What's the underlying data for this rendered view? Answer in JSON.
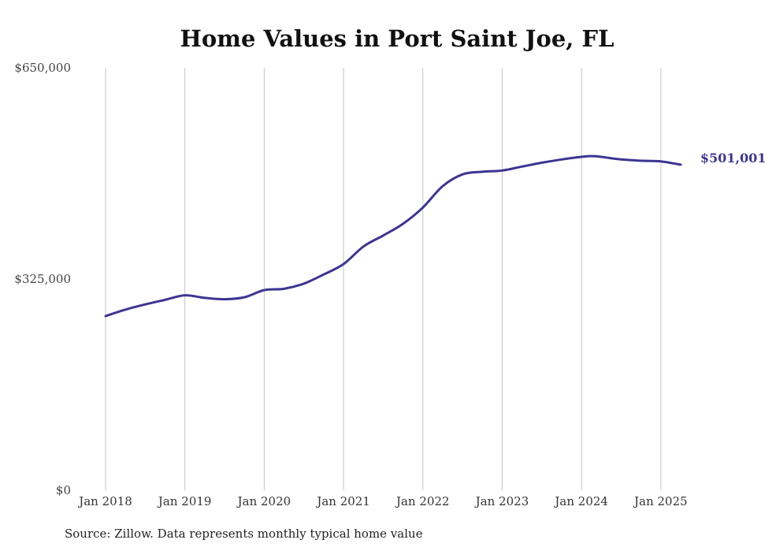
{
  "chart_data": {
    "type": "line",
    "title": "Home Values in Port Saint Joe, FL",
    "xlabel": "",
    "ylabel": "",
    "ylim": [
      0,
      650000
    ],
    "yticks": [
      {
        "value": 0,
        "label": "$0"
      },
      {
        "value": 325000,
        "label": "$325,000"
      },
      {
        "value": 650000,
        "label": "$650,000"
      }
    ],
    "xticks": [
      {
        "value": "2018-01",
        "label": "Jan 2018"
      },
      {
        "value": "2019-01",
        "label": "Jan 2019"
      },
      {
        "value": "2020-01",
        "label": "Jan 2020"
      },
      {
        "value": "2021-01",
        "label": "Jan 2021"
      },
      {
        "value": "2022-01",
        "label": "Jan 2022"
      },
      {
        "value": "2023-01",
        "label": "Jan 2023"
      },
      {
        "value": "2024-01",
        "label": "Jan 2024"
      },
      {
        "value": "2025-01",
        "label": "Jan 2025"
      }
    ],
    "grid": {
      "vertical": true,
      "horizontal": false
    },
    "line_color": "#3d3592",
    "series": [
      {
        "x": [
          "2018-01",
          "2018-04",
          "2018-07",
          "2018-10",
          "2019-01",
          "2019-04",
          "2019-07",
          "2019-10",
          "2020-01",
          "2020-04",
          "2020-07",
          "2020-10",
          "2021-01",
          "2021-04",
          "2021-07",
          "2021-10",
          "2022-01",
          "2022-04",
          "2022-07",
          "2022-10",
          "2023-01",
          "2023-04",
          "2023-07",
          "2023-10",
          "2024-01",
          "2024-03",
          "2024-07",
          "2024-10",
          "2025-01",
          "2025-04"
        ],
        "values": [
          268000,
          278000,
          286000,
          293000,
          300000,
          296000,
          294000,
          297000,
          308000,
          310000,
          318000,
          332000,
          348000,
          375000,
          392000,
          410000,
          435000,
          468000,
          486000,
          490000,
          492000,
          498000,
          504000,
          509000,
          513000,
          514000,
          509000,
          507000,
          506000,
          501001
        ]
      }
    ],
    "end_label": "$501,001"
  },
  "footer": {
    "source": "Source: Zillow. Data represents monthly typical home value"
  }
}
